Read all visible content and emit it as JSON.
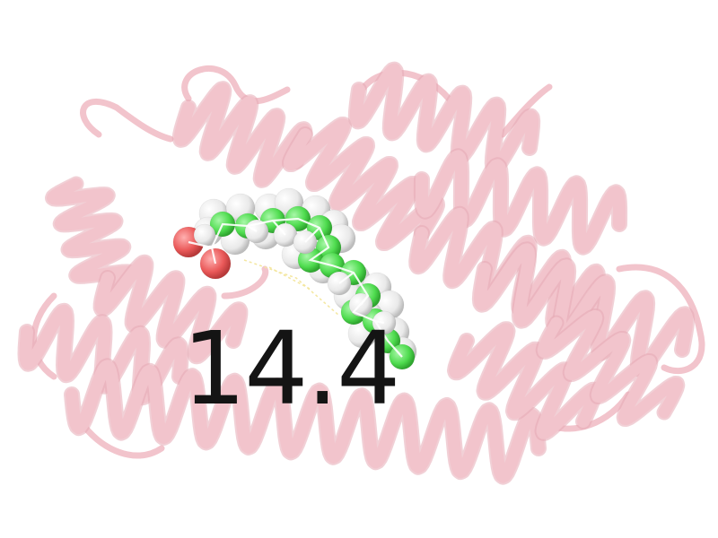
{
  "label": {
    "value": "14.4"
  },
  "colors": {
    "background": "#ffffff",
    "protein_ribbon": "#f2c4cc",
    "protein_shadow": "#e6a9b5",
    "ligand_carbon": "#5ce65c",
    "ligand_hydrogen": "#efefef",
    "ligand_oxygen": "#ef6262",
    "label_text": "#141414"
  },
  "icons": {
    "protein": "protein-ribbon-cartoon",
    "ligand": "ligand-spacefill-model"
  }
}
